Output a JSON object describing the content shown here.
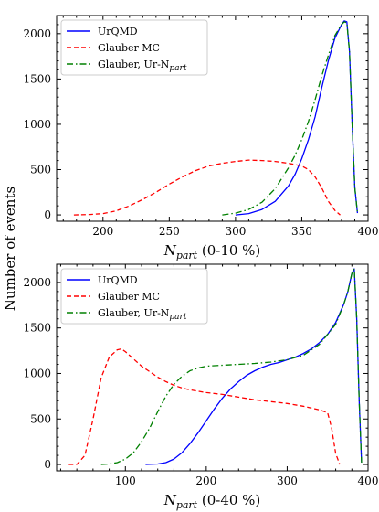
{
  "figure": {
    "ylabel": "Number of events"
  },
  "chart_data": [
    {
      "type": "line",
      "xlabel_var": "N",
      "xlabel_sub": "part",
      "xlabel_rest": " (0-10 %)",
      "xlim": [
        165,
        400
      ],
      "ylim": [
        -70,
        2200
      ],
      "x_ticks": [
        200,
        250,
        300,
        350,
        400
      ],
      "y_ticks": [
        0,
        500,
        1000,
        1500,
        2000
      ],
      "legend_position": "top-left",
      "legend": [
        {
          "text": "UrQMD",
          "sub": "",
          "color": "#0000ff",
          "dash": "solid"
        },
        {
          "text": "Glauber MC",
          "sub": "",
          "color": "#ff0000",
          "dash": "dashed"
        },
        {
          "text": "Glauber, Ur-N",
          "sub": "part",
          "color": "#008000",
          "dash": "dashdot"
        }
      ],
      "series": [
        {
          "name": "UrQMD",
          "color": "#0000ff",
          "dash": "solid",
          "x": [
            300,
            310,
            320,
            330,
            340,
            345,
            350,
            355,
            360,
            365,
            370,
            375,
            380,
            382,
            384,
            386,
            388,
            390,
            392
          ],
          "y": [
            0,
            15,
            60,
            150,
            320,
            450,
            620,
            830,
            1080,
            1400,
            1700,
            1950,
            2100,
            2140,
            2130,
            1800,
            1000,
            300,
            20
          ]
        },
        {
          "name": "Glauber MC",
          "color": "#ff0000",
          "dash": "dashed",
          "x": [
            178,
            190,
            200,
            210,
            220,
            230,
            240,
            250,
            260,
            270,
            280,
            290,
            300,
            310,
            320,
            330,
            340,
            350,
            355,
            360,
            365,
            370,
            375,
            379
          ],
          "y": [
            0,
            5,
            15,
            45,
            100,
            170,
            250,
            340,
            420,
            490,
            540,
            570,
            590,
            605,
            600,
            590,
            570,
            540,
            500,
            420,
            300,
            150,
            50,
            0
          ]
        },
        {
          "name": "Glauber, Ur-Npart",
          "color": "#008000",
          "dash": "dashdot",
          "x": [
            290,
            300,
            310,
            320,
            330,
            340,
            345,
            350,
            355,
            360,
            365,
            370,
            375,
            380,
            382,
            384,
            386,
            388,
            390,
            392
          ],
          "y": [
            0,
            20,
            60,
            140,
            290,
            520,
            660,
            830,
            1030,
            1270,
            1530,
            1760,
            1980,
            2100,
            2130,
            2120,
            1800,
            1000,
            300,
            20
          ]
        }
      ]
    },
    {
      "type": "line",
      "xlabel_var": "N",
      "xlabel_sub": "part",
      "xlabel_rest": " (0-40 %)",
      "xlim": [
        15,
        400
      ],
      "ylim": [
        -70,
        2200
      ],
      "x_ticks": [
        100,
        200,
        300,
        400
      ],
      "y_ticks": [
        0,
        500,
        1000,
        1500,
        2000
      ],
      "legend_position": "top-left",
      "legend": [
        {
          "text": "UrQMD",
          "sub": "",
          "color": "#0000ff",
          "dash": "solid"
        },
        {
          "text": "Glauber MC",
          "sub": "",
          "color": "#ff0000",
          "dash": "dashed"
        },
        {
          "text": "Glauber, Ur-N",
          "sub": "part",
          "color": "#008000",
          "dash": "dashdot"
        }
      ],
      "series": [
        {
          "name": "UrQMD",
          "color": "#0000ff",
          "dash": "solid",
          "x": [
            125,
            140,
            150,
            160,
            170,
            180,
            190,
            200,
            210,
            220,
            230,
            240,
            250,
            260,
            270,
            280,
            290,
            300,
            310,
            320,
            330,
            340,
            350,
            360,
            370,
            375,
            380,
            383,
            386,
            389,
            392
          ],
          "y": [
            0,
            5,
            20,
            60,
            130,
            230,
            350,
            480,
            610,
            730,
            830,
            910,
            980,
            1030,
            1070,
            1100,
            1120,
            1150,
            1180,
            1220,
            1270,
            1340,
            1430,
            1560,
            1760,
            1900,
            2100,
            2150,
            1600,
            700,
            20
          ]
        },
        {
          "name": "Glauber MC",
          "color": "#ff0000",
          "dash": "dashed",
          "x": [
            30,
            40,
            50,
            60,
            70,
            80,
            90,
            95,
            100,
            110,
            120,
            130,
            140,
            150,
            160,
            170,
            180,
            200,
            220,
            240,
            260,
            280,
            300,
            320,
            340,
            350,
            355,
            360,
            365
          ],
          "y": [
            0,
            0,
            100,
            500,
            950,
            1180,
            1260,
            1270,
            1240,
            1160,
            1080,
            1020,
            960,
            910,
            870,
            840,
            820,
            790,
            770,
            740,
            710,
            690,
            670,
            640,
            600,
            570,
            400,
            120,
            0
          ]
        },
        {
          "name": "Glauber, Ur-Npart",
          "color": "#008000",
          "dash": "dashdot",
          "x": [
            70,
            80,
            90,
            100,
            110,
            120,
            130,
            140,
            150,
            160,
            170,
            180,
            190,
            200,
            220,
            240,
            260,
            280,
            300,
            320,
            340,
            360,
            370,
            375,
            380,
            383,
            386,
            389,
            392
          ],
          "y": [
            0,
            5,
            20,
            60,
            130,
            250,
            400,
            580,
            750,
            880,
            970,
            1030,
            1060,
            1080,
            1090,
            1100,
            1110,
            1125,
            1150,
            1200,
            1320,
            1540,
            1760,
            1900,
            2100,
            2150,
            1600,
            700,
            20
          ]
        }
      ]
    }
  ]
}
